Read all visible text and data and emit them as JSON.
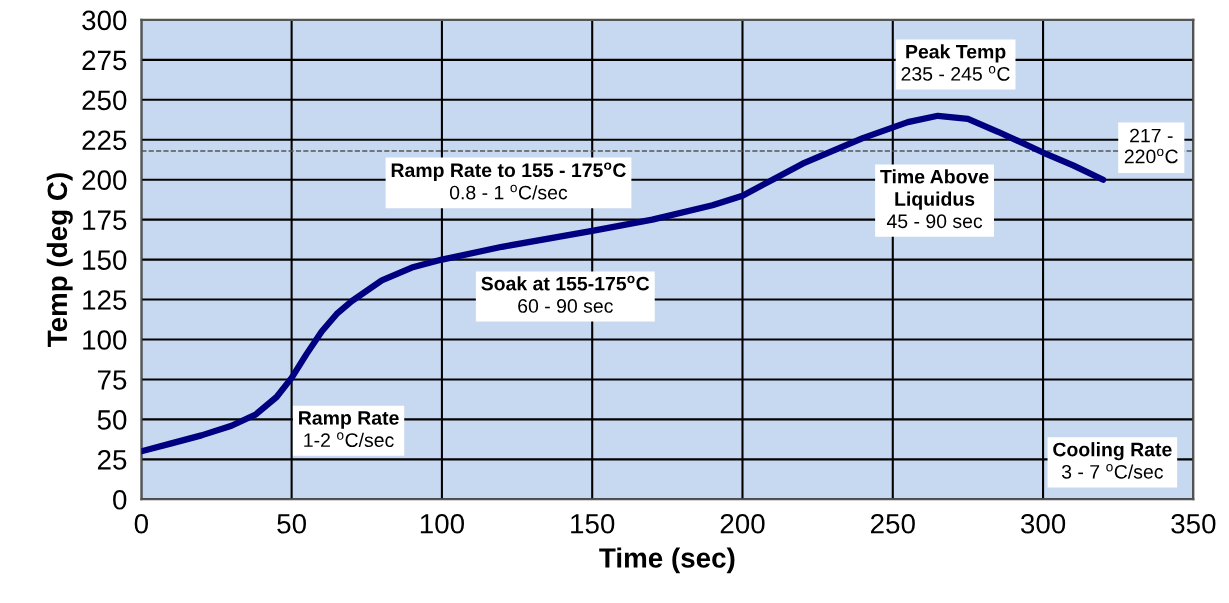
{
  "chart_data": {
    "type": "line",
    "xlabel": "Time (sec)",
    "ylabel": "Temp (deg C)",
    "x": [
      0,
      10,
      20,
      30,
      38,
      45,
      50,
      55,
      60,
      65,
      70,
      80,
      90,
      100,
      120,
      150,
      170,
      190,
      200,
      210,
      220,
      240,
      255,
      265,
      275,
      285,
      300,
      310,
      320
    ],
    "series": [
      {
        "color": "#000080",
        "values": [
          30,
          35,
          40,
          46,
          53,
          64,
          76,
          91,
          105,
          116,
          124,
          137,
          145,
          150,
          158,
          168,
          175,
          184,
          190,
          200,
          210,
          226,
          236,
          240,
          238,
          230,
          217,
          209,
          200
        ]
      }
    ],
    "xlim": [
      0,
      350
    ],
    "xticks": [
      0,
      50,
      100,
      150,
      200,
      250,
      300,
      350
    ],
    "ylim": [
      0,
      300
    ],
    "yticks": [
      0,
      25,
      50,
      75,
      100,
      125,
      150,
      175,
      200,
      225,
      250,
      275,
      300
    ],
    "grid": true,
    "marker": "none",
    "line_style": "solid",
    "ref_lines": [
      {
        "axis": "y",
        "value": 218,
        "label": "217 -\n220$^{o}$C",
        "color": "#555555",
        "line_style": "dashed"
      }
    ],
    "annotations": [
      "Ramp Rate\n1-2 $^{o}$C/sec",
      "Ramp Rate to 155 - 175$^{o}$C\n0.8 - 1 $^{o}$C/sec",
      "Soak at 155-175$^{o}$C\n60 - 90 sec",
      "Peak Temp\n235 - 245 $^{o}$C",
      "Time Above\nLiquidus\n45 - 90 sec",
      "Cooling Rate\n3 - 7 $^{o}$C/sec"
    ]
  }
}
